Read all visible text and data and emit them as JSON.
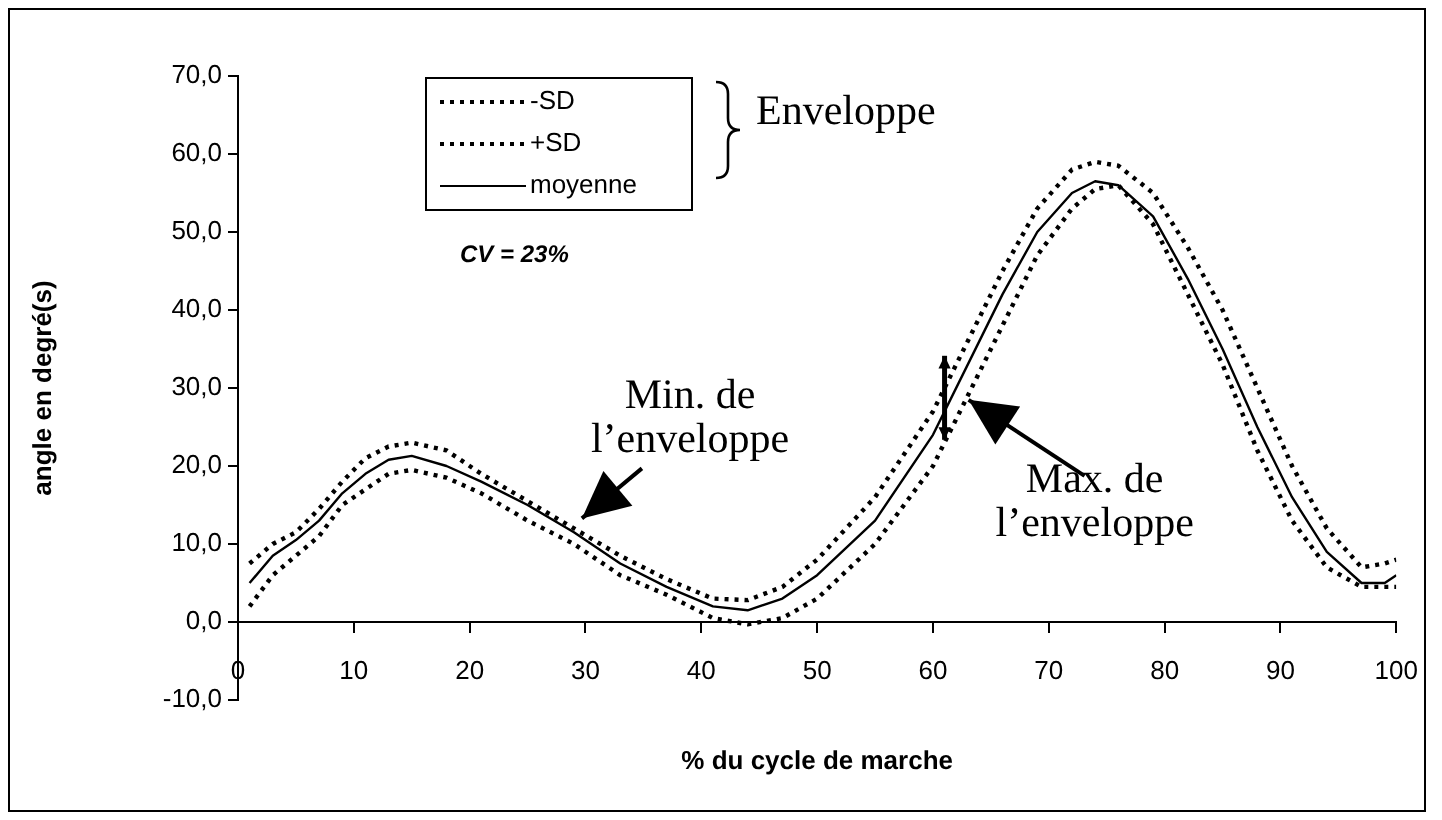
{
  "chart_data": {
    "type": "line",
    "xlabel": "% du cycle de marche",
    "ylabel": "angle en degré(s)",
    "xlim": [
      0,
      100
    ],
    "xticks": [
      0,
      10,
      20,
      30,
      40,
      50,
      60,
      70,
      80,
      90,
      100
    ],
    "ylim": [
      -10,
      70
    ],
    "yticks": [
      {
        "value": -10,
        "label": "-10,0"
      },
      {
        "value": 0,
        "label": "0,0"
      },
      {
        "value": 10,
        "label": "10,0"
      },
      {
        "value": 20,
        "label": "20,0"
      },
      {
        "value": 30,
        "label": "30,0"
      },
      {
        "value": 40,
        "label": "40,0"
      },
      {
        "value": 50,
        "label": "50,0"
      },
      {
        "value": 60,
        "label": "60,0"
      },
      {
        "value": 70,
        "label": "70,0"
      }
    ],
    "x": [
      1,
      3,
      5,
      7,
      9,
      11,
      13,
      15,
      18,
      21,
      25,
      29,
      33,
      37,
      41,
      44,
      47,
      50,
      55,
      60,
      63,
      66,
      69,
      72,
      74,
      76,
      79,
      82,
      85,
      88,
      91,
      94,
      97,
      99,
      100
    ],
    "series": [
      {
        "name": "-SD",
        "color": "#000000",
        "line_style": "dotted",
        "values": [
          2,
          6,
          8.5,
          11,
          15,
          17,
          19,
          19.5,
          18.5,
          16.5,
          13,
          10,
          6,
          3.5,
          0.5,
          -0.3,
          0.5,
          3,
          10,
          20,
          29,
          38,
          47,
          53,
          55.5,
          56,
          51,
          42,
          33,
          22,
          13,
          7,
          4.5,
          4.5,
          4.5
        ]
      },
      {
        "name": "+SD",
        "color": "#000000",
        "line_style": "dotted",
        "values": [
          7.5,
          10,
          11.5,
          14.5,
          18,
          21,
          22.5,
          23,
          22,
          19,
          15.5,
          12,
          8.5,
          5.5,
          3,
          2.8,
          4.5,
          8,
          16,
          27,
          36,
          45,
          53,
          58,
          59,
          58.5,
          55,
          48,
          40,
          30,
          20,
          12,
          7,
          7.5,
          8
        ]
      },
      {
        "name": "moyenne",
        "color": "#000000",
        "line_style": "solid",
        "values": [
          5,
          8.5,
          10.5,
          13,
          16.5,
          19,
          20.8,
          21.3,
          20,
          18,
          15,
          11.5,
          7.5,
          4.5,
          2,
          1.5,
          3,
          6,
          13,
          24,
          33,
          42,
          50,
          55,
          56.5,
          56,
          52,
          44,
          35,
          25,
          16,
          9,
          5,
          5,
          6
        ]
      }
    ],
    "legend": "top left",
    "grid": false,
    "marker": "none",
    "annotations": [
      "Enveloppe",
      "CV = 23%",
      {
        "text": "Min. de\nl’enveloppe",
        "x": 29,
        "y": 12
      },
      {
        "text": "Max. de\nl’enveloppe",
        "x": 61,
        "y": 29
      }
    ]
  }
}
